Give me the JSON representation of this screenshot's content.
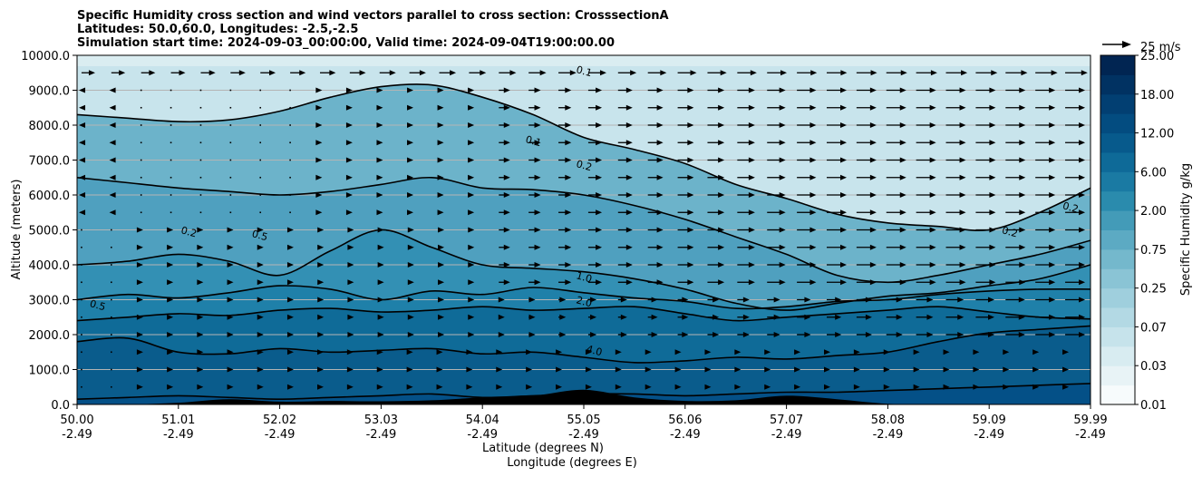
{
  "chart_data": {
    "type": "contourf",
    "title_lines": [
      "Specific Humidity cross section and wind vectors parallel to cross section: CrosssectionA",
      "Latitudes: 50.0,60.0, Longitudes: -2.5,-2.5",
      "Simulation start time: 2024-09-03_00:00:00, Valid time: 2024-09-04T19:00:00.00"
    ],
    "xlabel_lines": [
      "Latitude (degrees N)",
      "Longitude (degrees E)"
    ],
    "ylabel": "Altitude (meters)",
    "colorbar_label": "Specific Humidity g/kg",
    "quiver_key": "25 m/s",
    "ylim": [
      0,
      10000
    ],
    "yticks": [
      "0.0",
      "1000.0",
      "2000.0",
      "3000.0",
      "4000.0",
      "5000.0",
      "6000.0",
      "7000.0",
      "8000.0",
      "9000.0",
      "10000.0"
    ],
    "xticks_lat": [
      "50.00",
      "51.01",
      "52.02",
      "53.03",
      "54.04",
      "55.05",
      "56.06",
      "57.07",
      "58.08",
      "59.09",
      "59.99"
    ],
    "xticks_lon": [
      "-2.49",
      "-2.49",
      "-2.49",
      "-2.49",
      "-2.49",
      "-2.49",
      "-2.49",
      "-2.49",
      "-2.49",
      "-2.49",
      "-2.49"
    ],
    "colorbar_levels": [
      0.01,
      0.02,
      0.03,
      0.05,
      0.07,
      0.1,
      0.25,
      0.5,
      0.75,
      1.0,
      2.0,
      4.0,
      6.0,
      8.0,
      12.0,
      15.0,
      18.0,
      20.0,
      25.0
    ],
    "colorbar_ticks": [
      "0.01",
      "0.03",
      "0.07",
      "0.25",
      "0.75",
      "2.00",
      "6.00",
      "12.00",
      "18.00",
      "25.00"
    ],
    "colors": [
      "#f7fbfc",
      "#e8f3f6",
      "#d8ecf1",
      "#c6e3eb",
      "#b3d9e4",
      "#9fcfdd",
      "#8ac4d5",
      "#74b8cc",
      "#5caac3",
      "#439bb8",
      "#2a8bad",
      "#1a7aa3",
      "#0e6a98",
      "#075a8c",
      "#034c80",
      "#023f72",
      "#013262",
      "#012552"
    ],
    "contour_lines": [
      {
        "label": "0.1",
        "x": [
          0,
          5,
          10,
          15,
          20,
          25,
          30,
          35,
          40,
          45,
          50,
          55,
          60,
          65,
          70,
          75,
          80,
          85,
          90,
          95,
          100
        ],
        "y": [
          8300,
          8200,
          8100,
          8150,
          8400,
          8800,
          9100,
          9150,
          8800,
          8300,
          7650,
          7300,
          6900,
          6300,
          5900,
          5450,
          5200,
          5100,
          5000,
          5500,
          6200
        ]
      },
      {
        "label": "0.2",
        "x": [
          0,
          5,
          10,
          15,
          20,
          25,
          30,
          35,
          40,
          45,
          50,
          55,
          60,
          65,
          70,
          75,
          80,
          85,
          90,
          95,
          100
        ],
        "y": [
          6500,
          6350,
          6200,
          6100,
          6000,
          6100,
          6300,
          6500,
          6200,
          6150,
          6000,
          5700,
          5300,
          4800,
          4300,
          3700,
          3500,
          3700,
          4000,
          4300,
          4700
        ]
      },
      {
        "label": "0.5",
        "x": [
          0,
          5,
          10,
          15,
          20,
          25,
          30,
          35,
          40,
          45,
          50,
          55,
          60,
          65,
          70,
          75,
          80,
          85,
          90,
          95,
          100
        ],
        "y": [
          4000,
          4100,
          4300,
          4100,
          3700,
          4400,
          5000,
          4500,
          4000,
          3900,
          3800,
          3600,
          3300,
          2900,
          2700,
          2900,
          3100,
          3200,
          3400,
          3600,
          4000
        ]
      },
      {
        "label": "1.0",
        "x": [
          0,
          5,
          10,
          15,
          20,
          25,
          30,
          35,
          40,
          45,
          50,
          55,
          60,
          65,
          70,
          75,
          80,
          85,
          90,
          95,
          100
        ],
        "y": [
          3000,
          3150,
          3050,
          3200,
          3400,
          3300,
          3000,
          3250,
          3150,
          3350,
          3200,
          3050,
          2950,
          2750,
          2800,
          2950,
          3000,
          3150,
          3250,
          3300,
          3300
        ]
      },
      {
        "label": "2.0",
        "x": [
          0,
          5,
          10,
          15,
          20,
          25,
          30,
          35,
          40,
          45,
          50,
          55,
          60,
          65,
          70,
          75,
          80,
          85,
          90,
          95,
          100
        ],
        "y": [
          2400,
          2500,
          2600,
          2550,
          2700,
          2750,
          2650,
          2700,
          2800,
          2700,
          2750,
          2800,
          2600,
          2400,
          2500,
          2600,
          2700,
          2800,
          2650,
          2500,
          2450
        ]
      },
      {
        "label": "4.0",
        "x": [
          0,
          5,
          10,
          15,
          20,
          25,
          30,
          35,
          40,
          45,
          50,
          55,
          60,
          65,
          70,
          75,
          80,
          85,
          90,
          95,
          100
        ],
        "y": [
          1800,
          1900,
          1500,
          1450,
          1600,
          1500,
          1550,
          1600,
          1450,
          1500,
          1350,
          1200,
          1250,
          1350,
          1300,
          1400,
          1500,
          1800,
          2050,
          2150,
          2250
        ]
      },
      {
        "label": "6.0",
        "x": [
          0,
          5,
          10,
          15,
          20,
          25,
          30,
          35,
          40,
          45,
          50,
          55,
          60,
          65,
          70,
          75,
          80,
          85,
          90,
          95,
          100
        ],
        "y": [
          150,
          200,
          250,
          200,
          150,
          200,
          250,
          300,
          200,
          250,
          300,
          300,
          250,
          300,
          350,
          350,
          400,
          450,
          500,
          550,
          600
        ]
      }
    ],
    "contour_labels": [
      {
        "text": "0.1",
        "x": 45,
        "y": 7500
      },
      {
        "text": "0.2",
        "x": 50,
        "y": 6800
      },
      {
        "text": "0.1",
        "x": 50,
        "y": 9500
      },
      {
        "text": "0.2",
        "x": 11,
        "y": 4900
      },
      {
        "text": "0.5",
        "x": 18,
        "y": 4800
      },
      {
        "text": "0.5",
        "x": 2,
        "y": 2800
      },
      {
        "text": "1.0",
        "x": 50,
        "y": 3600
      },
      {
        "text": "2.0",
        "x": 50,
        "y": 2900
      },
      {
        "text": "4.0",
        "x": 51,
        "y": 1500
      },
      {
        "text": "0.2",
        "x": 92,
        "y": 4900
      },
      {
        "text": "0.2",
        "x": 98,
        "y": 5600
      }
    ],
    "terrain": {
      "x": [
        0,
        5,
        10,
        15,
        20,
        25,
        30,
        35,
        40,
        45,
        50,
        55,
        60,
        65,
        70,
        75,
        80,
        85,
        90,
        95,
        100
      ],
      "y": [
        0,
        0,
        50,
        150,
        80,
        100,
        90,
        120,
        200,
        250,
        420,
        200,
        100,
        120,
        250,
        150,
        20,
        0,
        0,
        0,
        0
      ]
    }
  }
}
